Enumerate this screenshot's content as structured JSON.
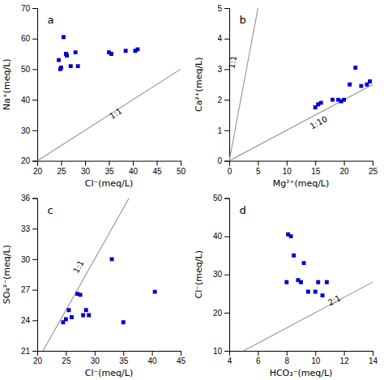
{
  "chart_data": [
    {
      "type": "scatter",
      "title": "a",
      "xlabel": "Cl⁻(meq/L)",
      "ylabel": "Na⁺(meq/L)",
      "xlim": [
        20,
        50
      ],
      "ylim": [
        20,
        70
      ],
      "xticks": [
        20,
        25,
        30,
        35,
        40,
        45,
        50
      ],
      "yticks": [
        20,
        30,
        40,
        50,
        60,
        70
      ],
      "grid": false,
      "series": [
        {
          "type": "scatter",
          "marker": "square",
          "color": "#0000CC",
          "x": [
            24.5,
            24.8,
            25.0,
            25.5,
            26.0,
            26.2,
            27.0,
            28.0,
            28.5,
            35.0,
            35.5,
            38.5,
            40.5,
            41.0
          ],
          "values": [
            53.0,
            50.0,
            50.5,
            60.5,
            55.0,
            54.5,
            51.0,
            55.5,
            51.0,
            55.5,
            55.0,
            56.0,
            56.0,
            56.5
          ]
        },
        {
          "type": "line",
          "color": "#999999",
          "x": [
            20,
            50
          ],
          "values": [
            20,
            50
          ]
        }
      ],
      "annotations": [
        {
          "text": "1:1",
          "x": 37,
          "y": 34
        }
      ]
    },
    {
      "type": "scatter",
      "title": "b",
      "xlabel": "Mg²⁺(meq/L)",
      "ylabel": "Ca²⁺(meq/L)",
      "xlim": [
        0,
        25
      ],
      "ylim": [
        0,
        5
      ],
      "xticks": [
        0,
        5,
        10,
        15,
        20,
        25
      ],
      "yticks": [
        0,
        1,
        2,
        3,
        4,
        5
      ],
      "grid": false,
      "series": [
        {
          "type": "scatter",
          "marker": "square",
          "color": "#0000CC",
          "x": [
            15.0,
            15.5,
            16.0,
            18.0,
            19.0,
            19.5,
            20.0,
            21.0,
            22.0,
            23.0,
            24.0,
            24.5
          ],
          "values": [
            1.75,
            1.85,
            1.9,
            2.0,
            2.0,
            1.95,
            2.0,
            2.5,
            3.05,
            2.45,
            2.5,
            2.6
          ]
        },
        {
          "type": "line",
          "color": "#999999",
          "x": [
            0,
            5
          ],
          "values": [
            0,
            5
          ]
        },
        {
          "type": "line",
          "color": "#999999",
          "x": [
            0,
            25
          ],
          "values": [
            0,
            2.5
          ]
        }
      ],
      "annotations": [
        {
          "text": "1:1",
          "x": 1.5,
          "y": 3.2
        },
        {
          "text": "1:10",
          "x": 16,
          "y": 1.1
        }
      ]
    },
    {
      "type": "scatter",
      "title": "c",
      "xlabel": "Cl⁻(meq/L)",
      "ylabel": "SO₄²⁻(meq/L)",
      "xlim": [
        20,
        45
      ],
      "ylim": [
        21,
        36
      ],
      "xticks": [
        20,
        25,
        30,
        35,
        40,
        45
      ],
      "yticks": [
        21,
        24,
        27,
        30,
        33,
        36
      ],
      "grid": false,
      "series": [
        {
          "type": "scatter",
          "marker": "square",
          "color": "#0000CC",
          "x": [
            24.5,
            25.0,
            25.5,
            26.0,
            27.0,
            27.5,
            28.0,
            28.5,
            29.0,
            33.0,
            35.0,
            40.5
          ],
          "values": [
            23.8,
            24.1,
            25.0,
            24.3,
            26.6,
            26.5,
            24.5,
            25.0,
            24.5,
            30.0,
            23.8,
            26.8
          ]
        },
        {
          "type": "line",
          "color": "#999999",
          "x": [
            21,
            36
          ],
          "values": [
            21,
            36
          ]
        }
      ],
      "annotations": [
        {
          "text": "1:1",
          "x": 28.0,
          "y": 29.0
        }
      ]
    },
    {
      "type": "scatter",
      "title": "d",
      "xlabel": "HCO₃⁻(meq/L)",
      "ylabel": "Cl⁻(meq/L)",
      "xlim": [
        4,
        14
      ],
      "ylim": [
        10,
        50
      ],
      "xticks": [
        4,
        6,
        8,
        10,
        12,
        14
      ],
      "yticks": [
        10,
        20,
        30,
        40,
        50
      ],
      "grid": false,
      "series": [
        {
          "type": "scatter",
          "marker": "square",
          "color": "#0000CC",
          "x": [
            8.0,
            8.1,
            8.3,
            8.5,
            8.8,
            9.0,
            9.2,
            9.5,
            10.0,
            10.2,
            10.5,
            10.8
          ],
          "values": [
            28.0,
            40.5,
            40.0,
            35.0,
            28.5,
            28.0,
            33.0,
            25.5,
            25.5,
            28.0,
            24.5,
            28.0
          ]
        },
        {
          "type": "line",
          "color": "#999999",
          "x": [
            5,
            14
          ],
          "values": [
            10,
            28
          ]
        }
      ],
      "annotations": [
        {
          "text": "2:1",
          "x": 11.5,
          "y": 22
        }
      ]
    }
  ]
}
